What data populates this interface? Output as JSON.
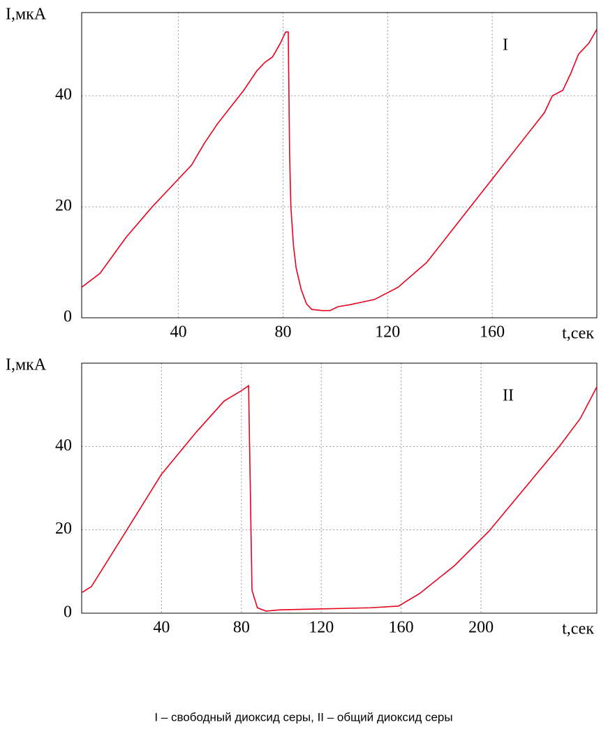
{
  "chart_data": [
    {
      "type": "line",
      "annotation": "I",
      "y_label": "I,мкА",
      "x_label": "t,сек",
      "color": "#e8001c",
      "grid": true,
      "xlim": [
        3,
        200
      ],
      "xticks": [
        40,
        80,
        120,
        160
      ],
      "ylim": [
        0,
        55
      ],
      "yticks": [
        0,
        20,
        40
      ],
      "x": [
        3,
        10,
        20,
        30,
        40,
        45,
        50,
        55,
        60,
        65,
        70,
        73,
        76,
        79,
        81,
        82,
        82.5,
        83,
        84,
        85,
        87,
        89,
        91,
        95,
        98,
        101,
        105,
        110,
        115,
        124,
        135,
        145,
        150,
        160,
        170,
        180,
        183,
        187,
        190,
        193,
        197,
        200
      ],
      "values": [
        5.5,
        8,
        14.5,
        20,
        25,
        27.5,
        31.5,
        35,
        38,
        41,
        44.5,
        46,
        47,
        49.5,
        51.5,
        51.5,
        30,
        20,
        13,
        9,
        5,
        2.5,
        1.5,
        1.3,
        1.3,
        2,
        2.3,
        2.8,
        3.3,
        5.5,
        10,
        16,
        19,
        25,
        31,
        37,
        40,
        41,
        44,
        47.5,
        49.5,
        52
      ]
    },
    {
      "type": "line",
      "annotation": "II",
      "y_label": "I,мкА",
      "x_label": "t,сек",
      "color": "#e8001c",
      "grid": true,
      "xlim": [
        0,
        258
      ],
      "xticks": [
        40,
        80,
        120,
        160,
        200
      ],
      "ylim": [
        0,
        60
      ],
      "yticks": [
        0,
        20,
        40
      ],
      "x": [
        0.3,
        4.9,
        22.4,
        39.9,
        57.3,
        71.3,
        80,
        83.6,
        85.3,
        88,
        92.3,
        99.3,
        116.8,
        144.8,
        158.7,
        169.2,
        186.7,
        204.2,
        221.7,
        239.2,
        249.7,
        258
      ],
      "values": [
        5,
        6.4,
        19.8,
        33.3,
        43.4,
        50.9,
        53.4,
        54.6,
        5.5,
        1.3,
        0.5,
        0.8,
        1,
        1.3,
        1.7,
        4.7,
        11.4,
        19.8,
        29.9,
        40,
        46.7,
        54.3
      ]
    }
  ],
  "caption": "I – свободный диоксид серы, II – общий диоксид серы"
}
